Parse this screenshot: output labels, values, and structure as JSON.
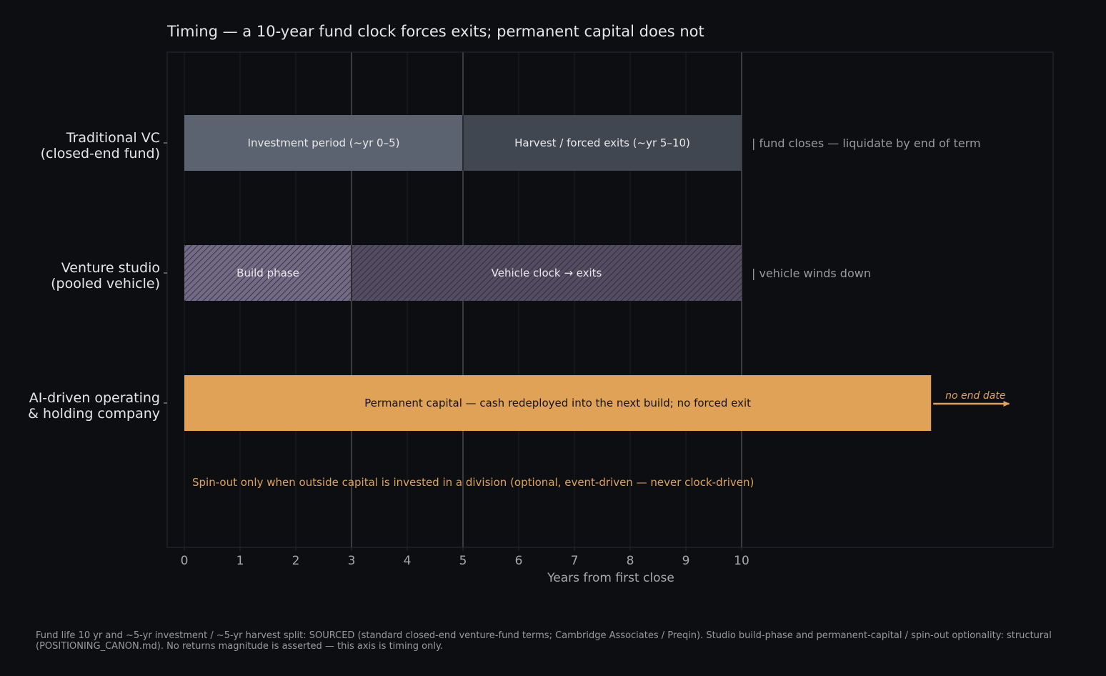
{
  "chart_data": {
    "type": "bar",
    "subtype": "horizontal-timeline",
    "title": "Timing — a 10-year fund clock forces exits; permanent capital does not",
    "xlabel": "Years from first close",
    "ylabel": "",
    "xlim": [
      -0.3,
      15.6
    ],
    "x_ticks": [
      0,
      1,
      2,
      3,
      4,
      5,
      6,
      7,
      8,
      9,
      10
    ],
    "reference_lines": [
      3,
      5,
      10
    ],
    "grid": true,
    "rows": [
      {
        "label_line1": "Traditional VC",
        "label_line2": "(closed-end fund)",
        "segments": [
          {
            "start": 0,
            "end": 5,
            "label": "Investment period (~yr 0–5)",
            "color": "#5b6270",
            "hatched": false
          },
          {
            "start": 5,
            "end": 10,
            "label": "Harvest / forced exits (~yr 5–10)",
            "color": "#414751",
            "hatched": false
          }
        ],
        "end_note": "|  fund closes — liquidate by end of term"
      },
      {
        "label_line1": "Venture studio",
        "label_line2": "(pooled vehicle)",
        "segments": [
          {
            "start": 0,
            "end": 3,
            "label": "Build phase",
            "color": "#736a85",
            "hatched": true
          },
          {
            "start": 3,
            "end": 10,
            "label": "Vehicle clock → exits",
            "color": "#544d62",
            "hatched": true
          }
        ],
        "end_note": "|  vehicle winds down"
      },
      {
        "label_line1": "AI-driven operating",
        "label_line2": "& holding company",
        "segments": [
          {
            "start": 0,
            "end": 13.4,
            "label": "Permanent capital — cash redeployed into the next build; no forced exit",
            "color": "#dfa256",
            "hatched": false
          }
        ],
        "arrow_label": "no end date",
        "arrow_end": 14.8
      }
    ],
    "annotation": "Spin-out only when outside capital is invested in a division (optional, event-driven — never clock-driven)",
    "footnote_line1": "Fund life 10 yr and ~5-yr investment / ~5-yr harvest split: SOURCED (standard closed-end venture-fund terms; Cambridge Associates / Preqin).  Studio build-phase and permanent-capital / spin-out optionality: structural",
    "footnote_line2": "(POSITIONING_CANON.md).  No returns magnitude is asserted — this axis is timing only."
  },
  "colors": {
    "background": "#0d0e12",
    "frame": "#2a2c31",
    "grid": "#1c1e22",
    "reference_line": "#45474c",
    "accent": "#dfa256",
    "text": "#e6e6e6",
    "muted": "#a8a8a8"
  }
}
